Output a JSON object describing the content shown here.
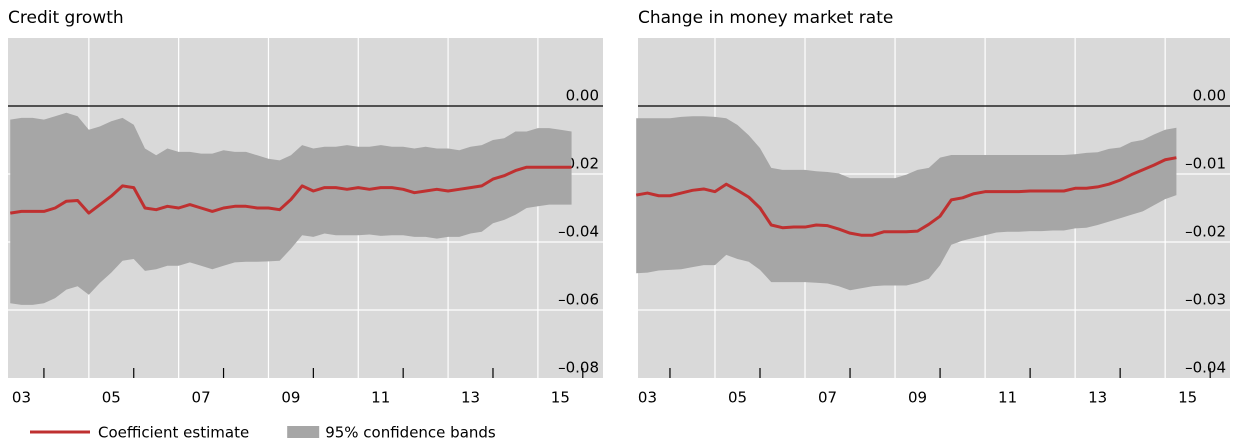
{
  "chart_data": [
    {
      "type": "line",
      "title": "Credit growth",
      "x": [
        2003.25,
        2003.5,
        2003.75,
        2004,
        2004.25,
        2004.5,
        2004.75,
        2005,
        2005.25,
        2005.5,
        2005.75,
        2006,
        2006.25,
        2006.5,
        2006.75,
        2007,
        2007.25,
        2007.5,
        2007.75,
        2008,
        2008.25,
        2008.5,
        2008.75,
        2009,
        2009.25,
        2009.5,
        2009.75,
        2010,
        2010.25,
        2010.5,
        2010.75,
        2011,
        2011.25,
        2011.5,
        2011.75,
        2012,
        2012.25,
        2012.5,
        2012.75,
        2013,
        2013.25,
        2013.5,
        2013.75,
        2014,
        2014.25,
        2014.5,
        2014.75,
        2015,
        2015.25,
        2015.5,
        2015.75
      ],
      "xlim": [
        2003.2,
        2016.45
      ],
      "xticks": [
        {
          "value": 2003.5,
          "label": "03"
        },
        {
          "value": 2005.5,
          "label": "05"
        },
        {
          "value": 2007.5,
          "label": "07"
        },
        {
          "value": 2009.5,
          "label": "09"
        },
        {
          "value": 2011.5,
          "label": "11"
        },
        {
          "value": 2013.5,
          "label": "13"
        },
        {
          "value": 2015.5,
          "label": "15"
        }
      ],
      "ylim": [
        -0.08,
        0.02
      ],
      "yticks": [
        {
          "value": 0,
          "label": "0.00"
        },
        {
          "value": -0.02,
          "label": "–0.02"
        },
        {
          "value": -0.04,
          "label": "–0.04"
        },
        {
          "value": -0.06,
          "label": "–0.06"
        },
        {
          "value": -0.08,
          "label": "–0.08"
        }
      ],
      "grid": true,
      "series": [
        {
          "name": "95% confidence bands",
          "color": "#a6a6a6",
          "kind": "band",
          "upper": [
            -0.004,
            -0.0035,
            -0.0035,
            -0.004,
            -0.003,
            -0.002,
            -0.003,
            -0.007,
            -0.006,
            -0.0045,
            -0.0035,
            -0.0055,
            -0.0125,
            -0.0145,
            -0.0125,
            -0.0135,
            -0.0135,
            -0.014,
            -0.014,
            -0.013,
            -0.0135,
            -0.0135,
            -0.0145,
            -0.0155,
            -0.016,
            -0.0145,
            -0.0115,
            -0.0125,
            -0.012,
            -0.012,
            -0.0115,
            -0.012,
            -0.012,
            -0.0115,
            -0.012,
            -0.012,
            -0.0125,
            -0.012,
            -0.0125,
            -0.0125,
            -0.013,
            -0.012,
            -0.0115,
            -0.01,
            -0.0095,
            -0.0075,
            -0.0075,
            -0.0065,
            -0.0065,
            -0.007,
            -0.0075
          ],
          "lower": [
            -0.058,
            -0.0585,
            -0.0585,
            -0.058,
            -0.0565,
            -0.054,
            -0.053,
            -0.0555,
            -0.052,
            -0.049,
            -0.0455,
            -0.045,
            -0.0485,
            -0.048,
            -0.047,
            -0.047,
            -0.046,
            -0.047,
            -0.048,
            -0.047,
            -0.046,
            -0.0458,
            -0.0458,
            -0.0457,
            -0.0455,
            -0.042,
            -0.038,
            -0.0385,
            -0.0375,
            -0.038,
            -0.038,
            -0.038,
            -0.0378,
            -0.0382,
            -0.038,
            -0.038,
            -0.0385,
            -0.0385,
            -0.039,
            -0.0385,
            -0.0385,
            -0.0375,
            -0.037,
            -0.0345,
            -0.0335,
            -0.032,
            -0.03,
            -0.0295,
            -0.029,
            -0.029,
            -0.029
          ]
        },
        {
          "name": "Coefficient estimate",
          "color": "#bf3030",
          "kind": "line",
          "values": [
            -0.0315,
            -0.031,
            -0.031,
            -0.031,
            -0.03,
            -0.028,
            -0.0278,
            -0.0315,
            -0.029,
            -0.0265,
            -0.0235,
            -0.024,
            -0.03,
            -0.0305,
            -0.0295,
            -0.03,
            -0.029,
            -0.03,
            -0.031,
            -0.03,
            -0.0295,
            -0.0295,
            -0.03,
            -0.03,
            -0.0305,
            -0.0275,
            -0.0235,
            -0.025,
            -0.024,
            -0.024,
            -0.0245,
            -0.024,
            -0.0245,
            -0.024,
            -0.024,
            -0.0245,
            -0.0255,
            -0.025,
            -0.0245,
            -0.025,
            -0.0245,
            -0.024,
            -0.0235,
            -0.0215,
            -0.0205,
            -0.019,
            -0.018,
            -0.018,
            -0.018,
            -0.018,
            -0.018
          ]
        }
      ]
    },
    {
      "type": "line",
      "title": "Change in money market rate",
      "x": [
        2003.25,
        2003.5,
        2003.75,
        2004,
        2004.25,
        2004.5,
        2004.75,
        2005,
        2005.25,
        2005.5,
        2005.75,
        2006,
        2006.25,
        2006.5,
        2006.75,
        2007,
        2007.25,
        2007.5,
        2007.75,
        2008,
        2008.25,
        2008.5,
        2008.75,
        2009,
        2009.25,
        2009.5,
        2009.75,
        2010,
        2010.25,
        2010.5,
        2010.75,
        2011,
        2011.25,
        2011.5,
        2011.75,
        2012,
        2012.25,
        2012.5,
        2012.75,
        2013,
        2013.25,
        2013.5,
        2013.75,
        2014,
        2014.25,
        2014.5,
        2014.75,
        2015,
        2015.25
      ],
      "xlim": [
        2003.29,
        2016.44
      ],
      "xticks": [
        {
          "value": 2003.5,
          "label": "03"
        },
        {
          "value": 2005.5,
          "label": "05"
        },
        {
          "value": 2007.5,
          "label": "07"
        },
        {
          "value": 2009.5,
          "label": "09"
        },
        {
          "value": 2011.5,
          "label": "11"
        },
        {
          "value": 2013.5,
          "label": "13"
        },
        {
          "value": 2015.5,
          "label": "15"
        }
      ],
      "ylim": [
        -0.04,
        0.01
      ],
      "yticks": [
        {
          "value": 0,
          "label": "0.00"
        },
        {
          "value": -0.01,
          "label": "–0.01"
        },
        {
          "value": -0.02,
          "label": "–0.02"
        },
        {
          "value": -0.03,
          "label": "–0.03"
        },
        {
          "value": -0.04,
          "label": "–0.04"
        }
      ],
      "grid": true,
      "series": [
        {
          "color": "#a6a6a6",
          "kind": "band",
          "upper": [
            -0.0018,
            -0.0018,
            -0.0018,
            -0.0018,
            -0.0016,
            -0.0015,
            -0.0015,
            -0.0016,
            -0.0018,
            -0.0028,
            -0.0043,
            -0.0062,
            -0.0091,
            -0.0094,
            -0.0094,
            -0.0094,
            -0.0096,
            -0.0097,
            -0.0099,
            -0.0106,
            -0.0106,
            -0.0106,
            -0.0106,
            -0.0106,
            -0.0101,
            -0.0094,
            -0.0091,
            -0.0076,
            -0.0072,
            -0.0072,
            -0.0072,
            -0.0072,
            -0.0072,
            -0.0072,
            -0.0072,
            -0.0072,
            -0.0072,
            -0.0072,
            -0.0072,
            -0.0071,
            -0.0069,
            -0.0068,
            -0.0063,
            -0.0061,
            -0.0053,
            -0.005,
            -0.0042,
            -0.0035,
            -0.0032
          ],
          "lower": [
            -0.0246,
            -0.0245,
            -0.0242,
            -0.0241,
            -0.024,
            -0.0237,
            -0.0234,
            -0.0234,
            -0.0219,
            -0.0225,
            -0.0229,
            -0.0241,
            -0.0259,
            -0.0259,
            -0.0259,
            -0.0259,
            -0.026,
            -0.0261,
            -0.0265,
            -0.0271,
            -0.0268,
            -0.0265,
            -0.0264,
            -0.0264,
            -0.0264,
            -0.026,
            -0.0254,
            -0.0234,
            -0.0204,
            -0.0198,
            -0.0194,
            -0.019,
            -0.0186,
            -0.0185,
            -0.0185,
            -0.0184,
            -0.0184,
            -0.0183,
            -0.0183,
            -0.018,
            -0.0179,
            -0.0175,
            -0.017,
            -0.0165,
            -0.016,
            -0.0155,
            -0.0146,
            -0.0137,
            -0.0131
          ]
        },
        {
          "color": "#bf3030",
          "kind": "line",
          "values": [
            -0.0131,
            -0.0128,
            -0.0132,
            -0.0132,
            -0.0128,
            -0.0124,
            -0.0122,
            -0.0126,
            -0.0115,
            -0.0124,
            -0.0134,
            -0.015,
            -0.0175,
            -0.0179,
            -0.0178,
            -0.0178,
            -0.0175,
            -0.0176,
            -0.0181,
            -0.0187,
            -0.019,
            -0.019,
            -0.0185,
            -0.0185,
            -0.0185,
            -0.0184,
            -0.0174,
            -0.0162,
            -0.0138,
            -0.0135,
            -0.0129,
            -0.0126,
            -0.0126,
            -0.0126,
            -0.0126,
            -0.0125,
            -0.0125,
            -0.0125,
            -0.0125,
            -0.0121,
            -0.0121,
            -0.0119,
            -0.0115,
            -0.0109,
            -0.0101,
            -0.0094,
            -0.0087,
            -0.0079,
            -0.0076
          ]
        }
      ]
    }
  ]
}
